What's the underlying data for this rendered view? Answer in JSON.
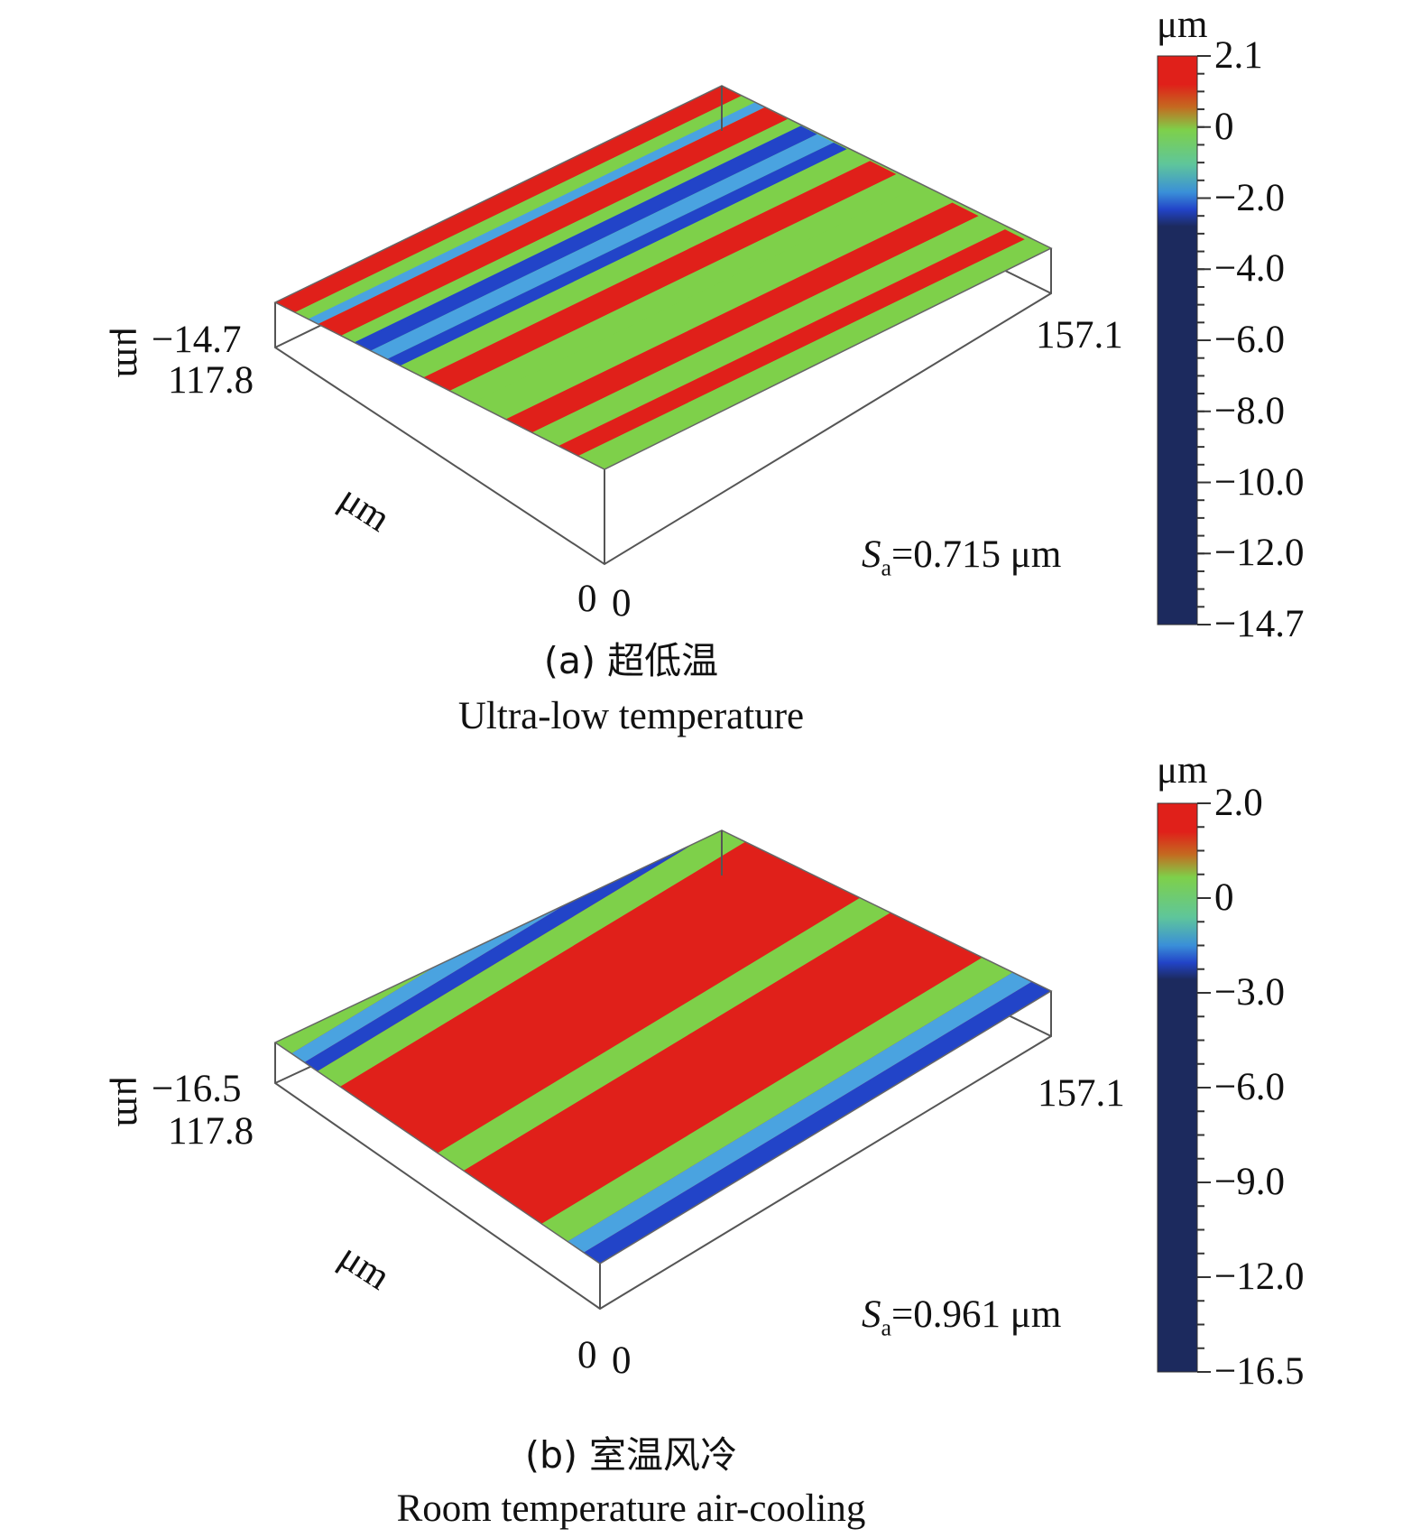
{
  "panels": [
    {
      "id": "a",
      "caption_zh": "(a) 超低温",
      "caption_en": "Ultra-low temperature",
      "z_label_top": "−14.7",
      "y_value": "117.8",
      "y_unit": "μm",
      "x_value": "157.1",
      "x_unit": "μm",
      "origin_labels": [
        "0",
        "0"
      ],
      "sa_symbol": "S",
      "sa_sub": "a",
      "sa_value": "=0.715 μm",
      "colorbar": {
        "unit": "μm",
        "max": 2.1,
        "min": -14.7,
        "ticks": [
          "2.1",
          "0",
          "−2.0",
          "−4.0",
          "−6.0",
          "−8.0",
          "−10.0",
          "−12.0",
          "−14.7"
        ]
      }
    },
    {
      "id": "b",
      "caption_zh": "(b) 室温风冷",
      "caption_en": "Room temperature air-cooling",
      "z_label_top": "−16.5",
      "y_value": "117.8",
      "y_unit": "μm",
      "x_value": "157.1",
      "x_unit": "μm",
      "origin_labels": [
        "0",
        "0"
      ],
      "sa_symbol": "S",
      "sa_sub": "a",
      "sa_value": "=0.961 μm",
      "colorbar": {
        "unit": "μm",
        "max": 2.0,
        "min": -16.5,
        "ticks": [
          "2.0",
          "0",
          "−3.0",
          "−6.0",
          "−9.0",
          "−12.0",
          "−16.5"
        ]
      }
    }
  ],
  "colors": {
    "red": "#e0201a",
    "green": "#7ed04a",
    "light_blue": "#4aa3e0",
    "blue": "#2244c8",
    "navy": "#1c2a5e"
  }
}
